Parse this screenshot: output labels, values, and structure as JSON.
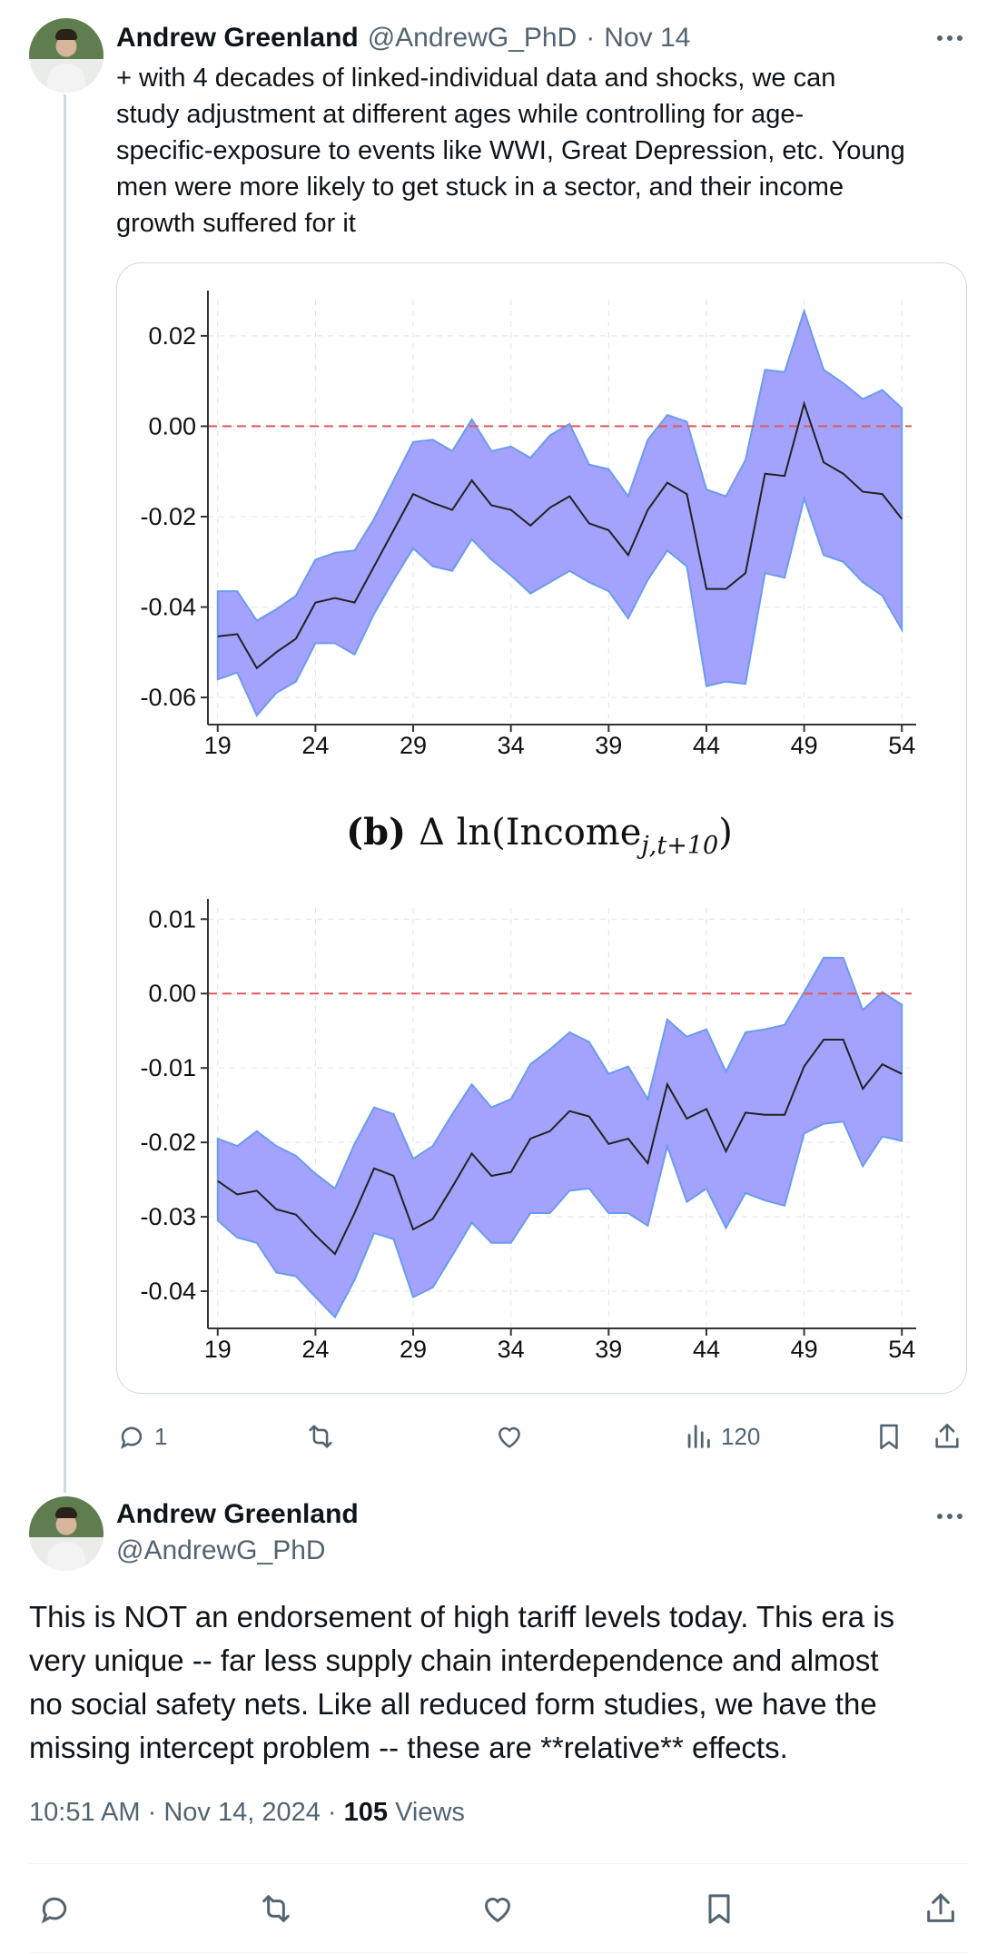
{
  "tweet1": {
    "author_name": "Andrew Greenland",
    "handle": "@AndrewG_PhD",
    "separator": "·",
    "date": "Nov 14",
    "text_lines": [
      "+ with 4 decades of linked-individual data and shocks,  we can",
      "study adjustment at different ages while controlling for age-",
      "specific-exposure to events like WWI, Great Depression, etc. Young",
      "men were more likely to get stuck in a sector, and their income",
      "growth suffered for it"
    ],
    "actions": {
      "reply_count": "1",
      "views_count": "120"
    }
  },
  "tweet2": {
    "author_name": "Andrew Greenland",
    "handle": "@AndrewG_PhD",
    "text_lines": [
      "This is NOT an endorsement of high tariff levels today. This era is",
      "very unique -- far less supply chain interdependence and almost",
      "no social safety nets.   Like all reduced form studies, we have the",
      "missing intercept problem -- these are **relative** effects."
    ],
    "time": "10:51 AM",
    "sep1": "·",
    "date": "Nov 14, 2024",
    "sep2": "·",
    "views": "105",
    "views_label": "Views"
  },
  "icons": [
    "more-icon",
    "reply-icon",
    "retweet-icon",
    "like-icon",
    "views-icon",
    "bookmark-icon",
    "share-icon"
  ],
  "colors": {
    "band_fill": "#a3a3fd",
    "band_edge": "#6a9bef",
    "point_line": "#222222",
    "zero_line": "#e05a5a",
    "muted_text": "#536471",
    "border": "#cfd9de"
  },
  "chart_data": [
    {
      "type": "area",
      "title": "",
      "xlabel": "",
      "ylabel": "",
      "x": [
        19,
        20,
        21,
        22,
        23,
        24,
        25,
        26,
        27,
        28,
        29,
        30,
        31,
        32,
        33,
        34,
        35,
        36,
        37,
        38,
        39,
        40,
        41,
        42,
        43,
        44,
        45,
        46,
        47,
        48,
        49,
        50,
        51,
        52,
        53,
        54
      ],
      "xticks": [
        19,
        24,
        29,
        34,
        39,
        44,
        49,
        54
      ],
      "yticks": [
        -0.06,
        -0.04,
        -0.02,
        0.0,
        0.02
      ],
      "ytick_labels": [
        "-0.06",
        "-0.04",
        "-0.02",
        "0.00",
        "0.02"
      ],
      "xlim": [
        18.5,
        54.5
      ],
      "ylim": [
        -0.066,
        0.028
      ],
      "reference_line": 0,
      "grid": true,
      "series": [
        {
          "role": "estimate",
          "values": [
            -0.0465,
            -0.046,
            -0.0535,
            -0.05,
            -0.047,
            -0.039,
            -0.038,
            -0.039,
            -0.031,
            -0.023,
            -0.015,
            -0.017,
            -0.0185,
            -0.012,
            -0.0175,
            -0.0185,
            -0.022,
            -0.018,
            -0.0155,
            -0.0215,
            -0.023,
            -0.0285,
            -0.0185,
            -0.0125,
            -0.015,
            -0.036,
            -0.036,
            -0.0325,
            -0.0105,
            -0.011,
            0.005,
            -0.008,
            -0.0105,
            -0.0145,
            -0.015,
            -0.0205
          ]
        },
        {
          "role": "upper",
          "values": [
            -0.0365,
            -0.0365,
            -0.043,
            -0.0405,
            -0.0375,
            -0.0295,
            -0.028,
            -0.0275,
            -0.0205,
            -0.012,
            -0.0035,
            -0.003,
            -0.0055,
            0.0015,
            -0.0055,
            -0.0045,
            -0.007,
            -0.002,
            0.0005,
            -0.0085,
            -0.0095,
            -0.0155,
            -0.003,
            0.0025,
            0.001,
            -0.014,
            -0.0155,
            -0.0075,
            0.0125,
            0.012,
            0.0255,
            0.0125,
            0.0095,
            0.006,
            0.008,
            0.004
          ]
        },
        {
          "role": "lower",
          "values": [
            -0.056,
            -0.0545,
            -0.064,
            -0.059,
            -0.0565,
            -0.048,
            -0.048,
            -0.0505,
            -0.0415,
            -0.034,
            -0.027,
            -0.031,
            -0.032,
            -0.025,
            -0.0295,
            -0.033,
            -0.037,
            -0.0345,
            -0.032,
            -0.0345,
            -0.0365,
            -0.0425,
            -0.034,
            -0.0275,
            -0.031,
            -0.0575,
            -0.0565,
            -0.057,
            -0.0325,
            -0.0335,
            -0.016,
            -0.0285,
            -0.03,
            -0.0345,
            -0.0375,
            -0.045
          ]
        }
      ]
    },
    {
      "type": "area",
      "title": "(b) Δ ln(Income j,t+10)",
      "xlabel": "",
      "ylabel": "",
      "x": [
        19,
        20,
        21,
        22,
        23,
        24,
        25,
        26,
        27,
        28,
        29,
        30,
        31,
        32,
        33,
        34,
        35,
        36,
        37,
        38,
        39,
        40,
        41,
        42,
        43,
        44,
        45,
        46,
        47,
        48,
        49,
        50,
        51,
        52,
        53,
        54
      ],
      "xticks": [
        19,
        24,
        29,
        34,
        39,
        44,
        49,
        54
      ],
      "yticks": [
        -0.04,
        -0.03,
        -0.02,
        -0.01,
        0.0,
        0.01
      ],
      "ytick_labels": [
        "-0.04",
        "-0.03",
        "-0.02",
        "-0.01",
        "0.00",
        "0.01"
      ],
      "xlim": [
        18.5,
        54.5
      ],
      "ylim": [
        -0.045,
        0.0115
      ],
      "reference_line": 0,
      "grid": true,
      "series": [
        {
          "role": "estimate",
          "values": [
            -0.0252,
            -0.027,
            -0.0265,
            -0.029,
            -0.0297,
            -0.0325,
            -0.035,
            -0.0295,
            -0.0235,
            -0.0245,
            -0.0317,
            -0.0303,
            -0.026,
            -0.0215,
            -0.0245,
            -0.024,
            -0.0195,
            -0.0185,
            -0.0158,
            -0.0165,
            -0.0202,
            -0.0195,
            -0.0228,
            -0.0122,
            -0.0168,
            -0.0155,
            -0.0212,
            -0.016,
            -0.0163,
            -0.0163,
            -0.0098,
            -0.0062,
            -0.0062,
            -0.0128,
            -0.0095,
            -0.0108
          ]
        },
        {
          "role": "upper",
          "values": [
            -0.0195,
            -0.0205,
            -0.0185,
            -0.0205,
            -0.0218,
            -0.0242,
            -0.0262,
            -0.0202,
            -0.0153,
            -0.0162,
            -0.0222,
            -0.0205,
            -0.0162,
            -0.0122,
            -0.0153,
            -0.0142,
            -0.0095,
            -0.0075,
            -0.0052,
            -0.0065,
            -0.0108,
            -0.0098,
            -0.0142,
            -0.0035,
            -0.0058,
            -0.0048,
            -0.0105,
            -0.0052,
            -0.0048,
            -0.0042,
            0.0002,
            0.0048,
            0.0048,
            -0.0022,
            0.0002,
            -0.0015
          ]
        },
        {
          "role": "lower",
          "values": [
            -0.0305,
            -0.0328,
            -0.0335,
            -0.0375,
            -0.038,
            -0.0408,
            -0.0435,
            -0.0385,
            -0.0322,
            -0.033,
            -0.0408,
            -0.0395,
            -0.0352,
            -0.0308,
            -0.0335,
            -0.0335,
            -0.0295,
            -0.0295,
            -0.0265,
            -0.0262,
            -0.0295,
            -0.0295,
            -0.0312,
            -0.0205,
            -0.028,
            -0.0262,
            -0.0315,
            -0.0268,
            -0.0278,
            -0.0285,
            -0.0188,
            -0.0175,
            -0.0172,
            -0.0232,
            -0.0192,
            -0.0198
          ]
        }
      ]
    }
  ]
}
